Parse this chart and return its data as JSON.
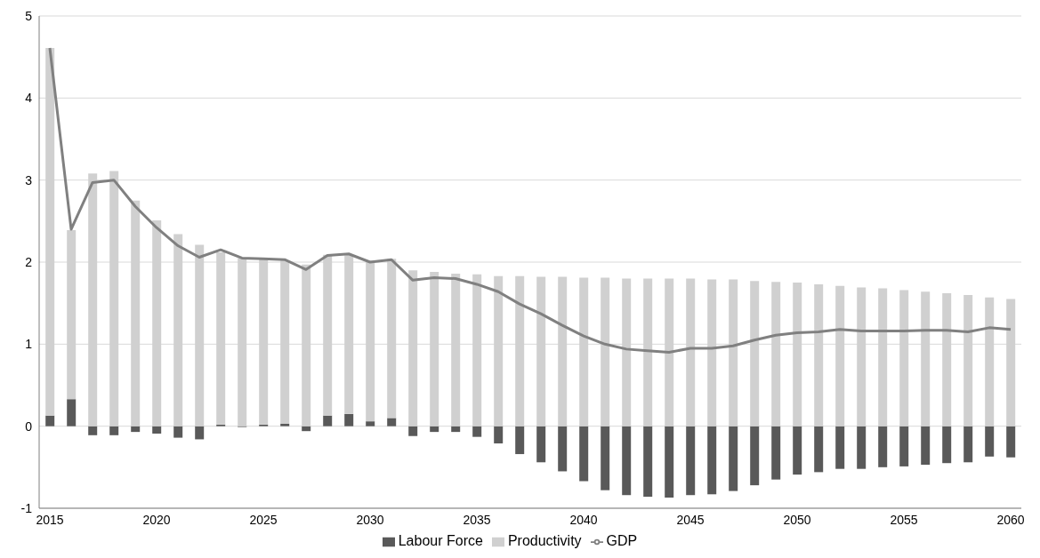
{
  "chart_data": {
    "type": "bar",
    "stacked": true,
    "categories": [
      "2015",
      null,
      null,
      null,
      null,
      "2020",
      null,
      null,
      null,
      null,
      "2025",
      null,
      null,
      null,
      null,
      "2030",
      null,
      null,
      null,
      null,
      "2035",
      null,
      null,
      null,
      null,
      "2040",
      null,
      null,
      null,
      null,
      "2045",
      null,
      null,
      null,
      null,
      "2050",
      null,
      null,
      null,
      null,
      "2055",
      null,
      null,
      null,
      null,
      "2060"
    ],
    "series": [
      {
        "name": "Labour Force",
        "color": "#595959",
        "values": [
          0.13,
          0.33,
          -0.11,
          -0.11,
          -0.07,
          -0.09,
          -0.14,
          -0.16,
          0.02,
          -0.01,
          0.02,
          0.03,
          -0.06,
          0.13,
          0.15,
          0.06,
          0.1,
          -0.12,
          -0.07,
          -0.07,
          -0.13,
          -0.21,
          -0.34,
          -0.44,
          -0.55,
          -0.67,
          -0.78,
          -0.84,
          -0.86,
          -0.87,
          -0.84,
          -0.83,
          -0.79,
          -0.72,
          -0.65,
          -0.59,
          -0.56,
          -0.52,
          -0.52,
          -0.5,
          -0.49,
          -0.47,
          -0.45,
          -0.44,
          -0.37,
          -0.38
        ]
      },
      {
        "name": "Productivity",
        "color": "#d0d0d0",
        "values": [
          4.48,
          2.06,
          3.08,
          3.11,
          2.75,
          2.51,
          2.34,
          2.21,
          2.1,
          2.05,
          2.02,
          1.99,
          1.97,
          1.96,
          1.94,
          1.96,
          1.94,
          1.9,
          1.88,
          1.86,
          1.85,
          1.83,
          1.83,
          1.82,
          1.82,
          1.81,
          1.81,
          1.8,
          1.8,
          1.8,
          1.8,
          1.79,
          1.79,
          1.77,
          1.76,
          1.75,
          1.73,
          1.71,
          1.69,
          1.68,
          1.66,
          1.64,
          1.62,
          1.6,
          1.57,
          1.55
        ]
      },
      {
        "name": "GDP",
        "type": "line",
        "color": "#808080",
        "values": [
          4.61,
          2.4,
          2.97,
          3.0,
          2.68,
          2.42,
          2.2,
          2.06,
          2.15,
          2.05,
          2.04,
          2.03,
          1.91,
          2.08,
          2.1,
          2.0,
          2.03,
          1.78,
          1.81,
          1.8,
          1.73,
          1.64,
          1.49,
          1.37,
          1.23,
          1.1,
          1.0,
          0.94,
          0.92,
          0.9,
          0.95,
          0.95,
          0.98,
          1.05,
          1.11,
          1.14,
          1.15,
          1.18,
          1.16,
          1.16,
          1.16,
          1.17,
          1.17,
          1.15,
          1.2,
          1.18
        ]
      }
    ],
    "ylim": [
      -1,
      5
    ],
    "yticks": [
      -1,
      0,
      1,
      2,
      3,
      4,
      5
    ],
    "grid": "y",
    "legend": "bottom",
    "marker": "none",
    "line_style": "solid"
  }
}
